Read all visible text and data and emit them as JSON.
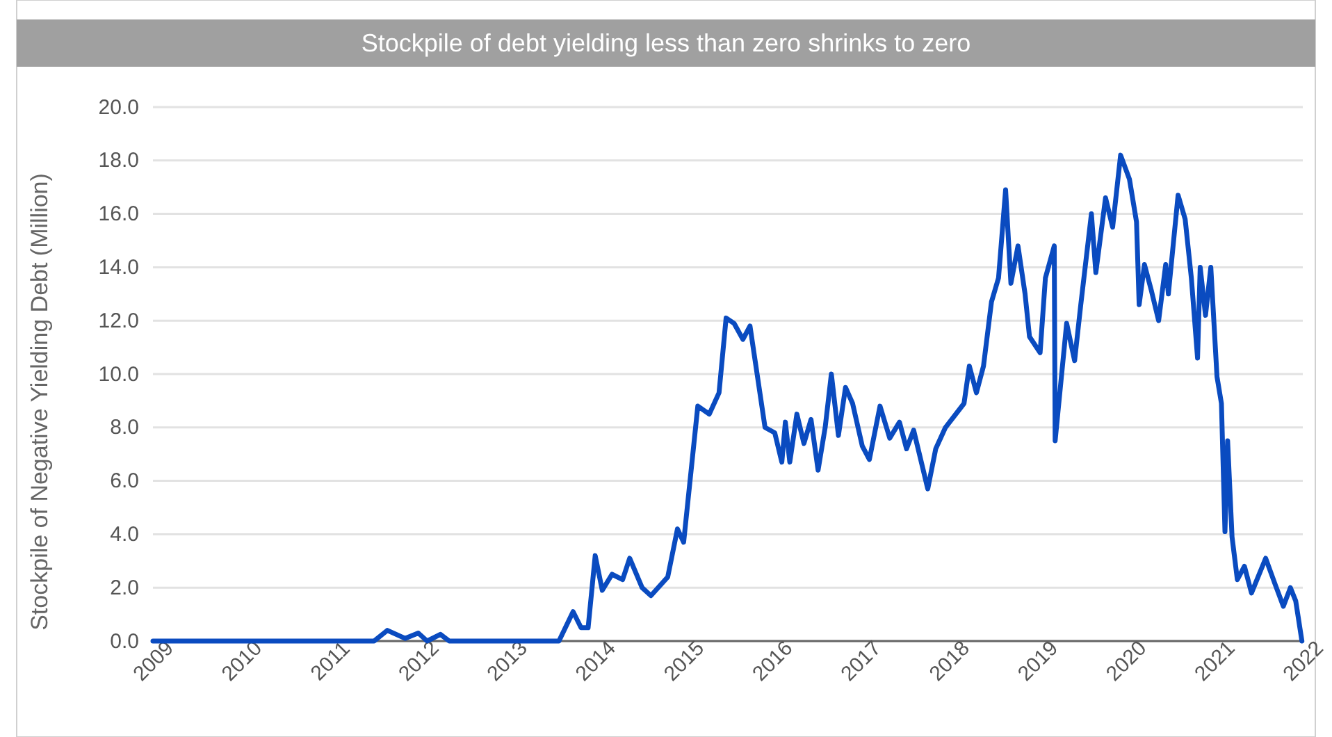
{
  "chart_data": {
    "type": "line",
    "title": "Stockpile of debt yielding less than zero  shrinks to zero",
    "ylabel": "Stockpile of Negative Yielding Debt (Million)",
    "xlim": [
      2009,
      2022
    ],
    "xticks": [
      2009,
      2010,
      2011,
      2012,
      2013,
      2014,
      2015,
      2016,
      2017,
      2018,
      2019,
      2020,
      2021,
      2022
    ],
    "ylim": [
      0,
      20
    ],
    "yticks": [
      {
        "value": 0,
        "label": "0.0"
      },
      {
        "value": 2,
        "label": "2.0"
      },
      {
        "value": 4,
        "label": "4.0"
      },
      {
        "value": 6,
        "label": "6.0"
      },
      {
        "value": 8,
        "label": "8.0"
      },
      {
        "value": 10,
        "label": "10.0"
      },
      {
        "value": 12,
        "label": "12.0"
      },
      {
        "value": 14,
        "label": "14.0"
      },
      {
        "value": 16,
        "label": "16.0"
      },
      {
        "value": 18,
        "label": "18.0"
      },
      {
        "value": 20,
        "label": "20.0"
      }
    ],
    "grid": "y",
    "series": [
      {
        "color": "#0a4bc0",
        "x": [
          2009,
          2011.5,
          2011.65,
          2011.85,
          2012.0,
          2012.1,
          2012.25,
          2012.35,
          2013.59,
          2013.75,
          2013.84,
          2013.92,
          2014.0,
          2014.08,
          2014.19,
          2014.31,
          2014.39,
          2014.53,
          2014.63,
          2014.82,
          2014.93,
          2015.0,
          2015.16,
          2015.29,
          2015.4,
          2015.48,
          2015.57,
          2015.67,
          2015.75,
          2015.92,
          2016.03,
          2016.11,
          2016.15,
          2016.2,
          2016.28,
          2016.36,
          2016.44,
          2016.52,
          2016.6,
          2016.67,
          2016.75,
          2016.83,
          2016.91,
          2017.02,
          2017.1,
          2017.22,
          2017.33,
          2017.44,
          2017.52,
          2017.6,
          2017.76,
          2017.85,
          2017.96,
          2018.17,
          2018.23,
          2018.31,
          2018.39,
          2018.48,
          2018.56,
          2018.64,
          2018.7,
          2018.78,
          2018.86,
          2018.91,
          2019.03,
          2019.09,
          2019.19,
          2019.2,
          2019.33,
          2019.42,
          2019.49,
          2019.61,
          2019.66,
          2019.77,
          2019.85,
          2019.94,
          2020.04,
          2020.12,
          2020.15,
          2020.21,
          2020.29,
          2020.37,
          2020.45,
          2020.48,
          2020.59,
          2020.67,
          2020.74,
          2020.81,
          2020.84,
          2020.9,
          2020.96,
          2021.03,
          2021.08,
          2021.12,
          2021.15,
          2021.2,
          2021.26,
          2021.34,
          2021.42,
          2021.58,
          2021.69,
          2021.78,
          2021.86,
          2021.92,
          2021.99
        ],
        "values": [
          0,
          0,
          0.4,
          0.1,
          0.3,
          0,
          0.25,
          0,
          0,
          1.1,
          0.5,
          0.5,
          3.2,
          1.9,
          2.5,
          2.3,
          3.1,
          2.0,
          1.7,
          2.4,
          4.2,
          3.7,
          8.8,
          8.5,
          9.3,
          12.1,
          11.9,
          11.3,
          11.8,
          8.0,
          7.8,
          6.7,
          8.2,
          6.7,
          8.5,
          7.4,
          8.3,
          6.4,
          8.0,
          10.0,
          7.7,
          9.5,
          8.9,
          7.3,
          6.8,
          8.8,
          7.6,
          8.2,
          7.2,
          7.9,
          5.7,
          7.2,
          8.0,
          8.9,
          10.3,
          9.3,
          10.3,
          12.7,
          13.6,
          16.9,
          13.4,
          14.8,
          13.0,
          11.4,
          10.8,
          13.6,
          14.8,
          7.5,
          11.9,
          10.5,
          12.6,
          16.0,
          13.8,
          16.6,
          15.5,
          18.2,
          17.3,
          15.7,
          12.6,
          14.1,
          13.1,
          12.0,
          14.1,
          13.0,
          16.7,
          15.8,
          13.6,
          10.6,
          14.0,
          12.2,
          14.0,
          9.9,
          8.9,
          4.1,
          7.5,
          3.9,
          2.3,
          2.8,
          1.8,
          3.1,
          2.1,
          1.3,
          2.0,
          1.5,
          0
        ]
      }
    ]
  }
}
